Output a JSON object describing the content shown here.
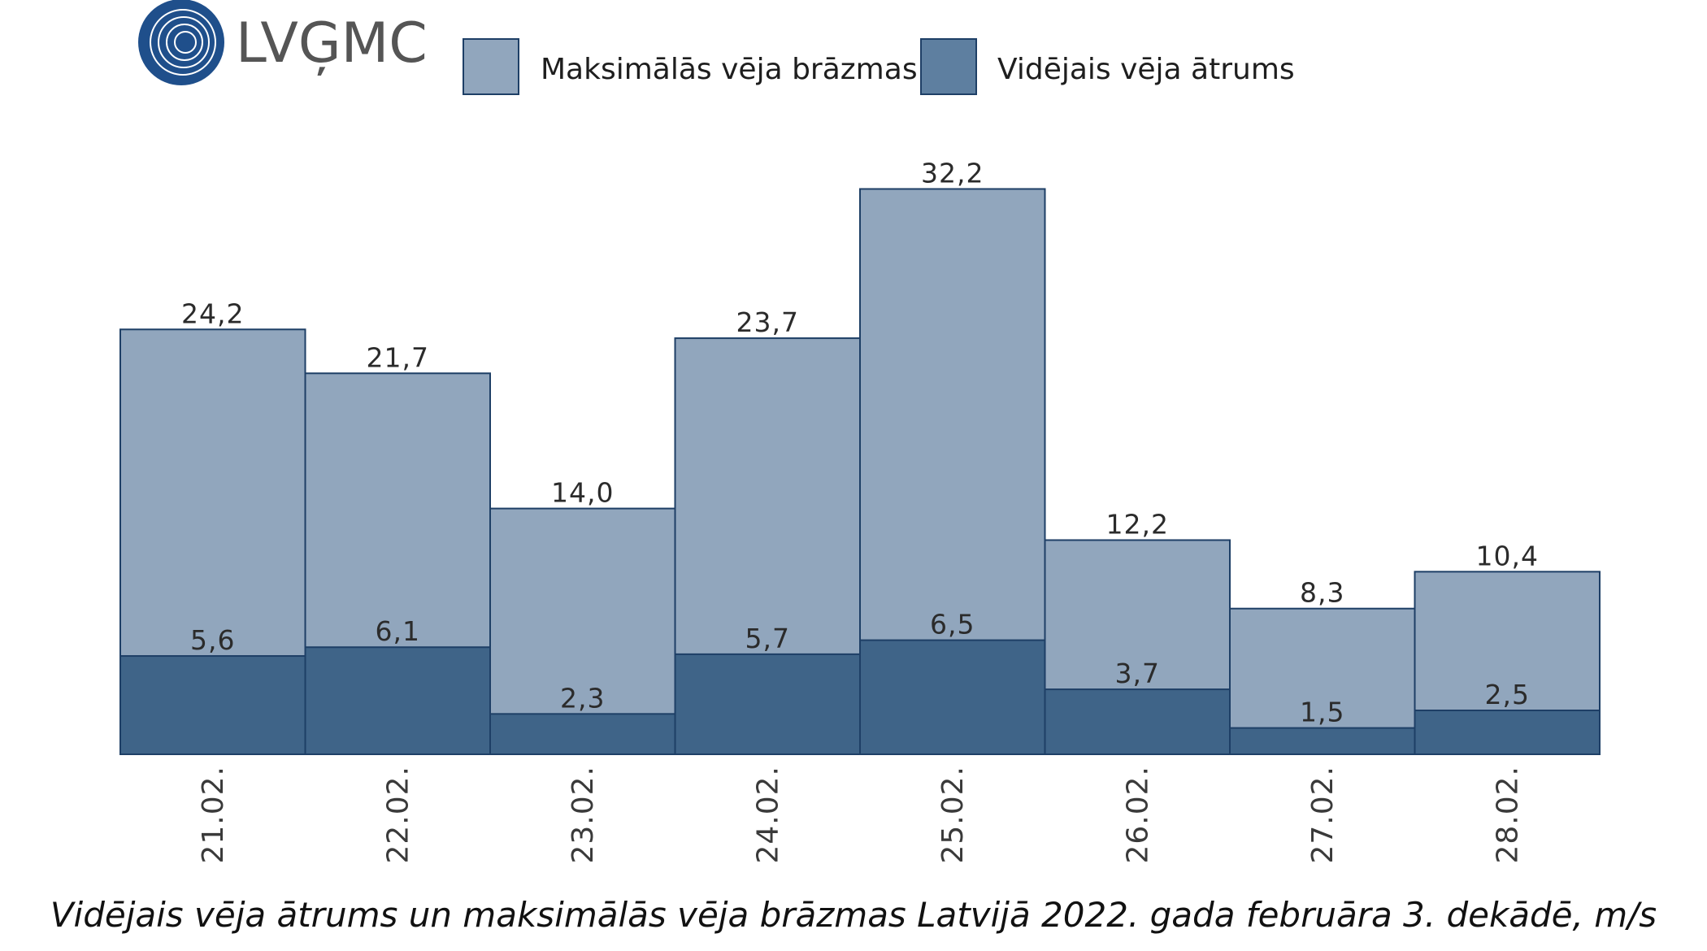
{
  "logo": {
    "text": "LVĢMC"
  },
  "legend": {
    "items": [
      {
        "label": "Maksimālās vēja brāzmas",
        "color": "#91a6bd"
      },
      {
        "label": "Vidējais vēja ātrums",
        "color": "#5e7fa0"
      }
    ]
  },
  "caption": "Vidējais vēja ātrums un maksimālās vēja brāzmas Latvijā 2022. gada februāra 3. dekādē, m/s",
  "chart_data": {
    "type": "bar",
    "categories": [
      "21.02.",
      "22.02.",
      "23.02.",
      "24.02.",
      "25.02.",
      "26.02.",
      "27.02.",
      "28.02."
    ],
    "series": [
      {
        "name": "Maksimālās vēja brāzmas",
        "values": [
          24.2,
          21.7,
          14.0,
          23.7,
          32.2,
          12.2,
          8.3,
          10.4
        ],
        "labels": [
          "24,2",
          "21,7",
          "14,0",
          "23,7",
          "32,2",
          "12,2",
          "8,3",
          "10,4"
        ],
        "color": "#91a6bd"
      },
      {
        "name": "Vidējais vēja ātrums",
        "values": [
          5.6,
          6.1,
          2.3,
          5.7,
          6.5,
          3.7,
          1.5,
          2.5
        ],
        "labels": [
          "5,6",
          "6,1",
          "2,3",
          "5,7",
          "6,5",
          "3,7",
          "1,5",
          "2,5"
        ],
        "color": "#3f6488"
      }
    ],
    "overlap": true,
    "ylim": [
      0,
      34
    ],
    "grid": false,
    "legend_position": "top",
    "title": "Vidējais vēja ātrums un maksimālās vēja brāzmas Latvijā 2022. gada februāra 3. dekādē, m/s"
  }
}
